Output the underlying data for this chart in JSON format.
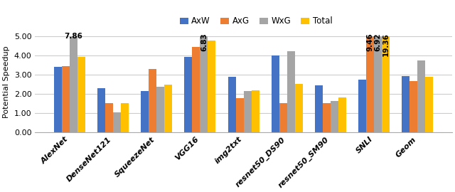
{
  "categories": [
    "AlexNet",
    "DenseNet121",
    "SqueezeNet",
    "VGG16",
    "img2txt",
    "resnet50_DS90",
    "resnet50_SM90",
    "SNLI",
    "Geom"
  ],
  "series": {
    "AxW": [
      3.38,
      2.3,
      2.15,
      3.9,
      2.87,
      4.0,
      2.45,
      2.72,
      2.93
    ],
    "AxG": [
      3.42,
      1.52,
      3.3,
      4.45,
      1.75,
      1.5,
      1.52,
      5.0,
      2.65
    ],
    "WxG": [
      5.0,
      1.03,
      2.35,
      5.0,
      2.15,
      4.2,
      1.62,
      5.0,
      3.72
    ],
    "Total": [
      3.93,
      1.52,
      2.47,
      4.77,
      2.17,
      2.52,
      1.8,
      5.0,
      2.88
    ]
  },
  "colors": {
    "AxW": "#4472C4",
    "AxG": "#ED7D31",
    "WxG": "#A5A5A5",
    "Total": "#FFC000"
  },
  "ylabel": "Potential Speedup",
  "ylim": [
    0,
    5.25
  ],
  "yticks": [
    0.0,
    1.0,
    2.0,
    3.0,
    4.0,
    5.0
  ],
  "ytick_labels": [
    "0.00",
    "1.00",
    "2.00",
    "3.00",
    "4.00",
    "5.00"
  ],
  "legend_order": [
    "AxW",
    "AxG",
    "WxG",
    "Total"
  ],
  "bar_width": 0.18,
  "grid_color": "#CCCCCC",
  "annotation_alexnet_wxg": "7.86",
  "annotation_vgg16_wxg": "6.83",
  "annotation_snli_axg": "9.46",
  "annotation_snli_wxg": "6.92",
  "annotation_snli_total": "19.36"
}
